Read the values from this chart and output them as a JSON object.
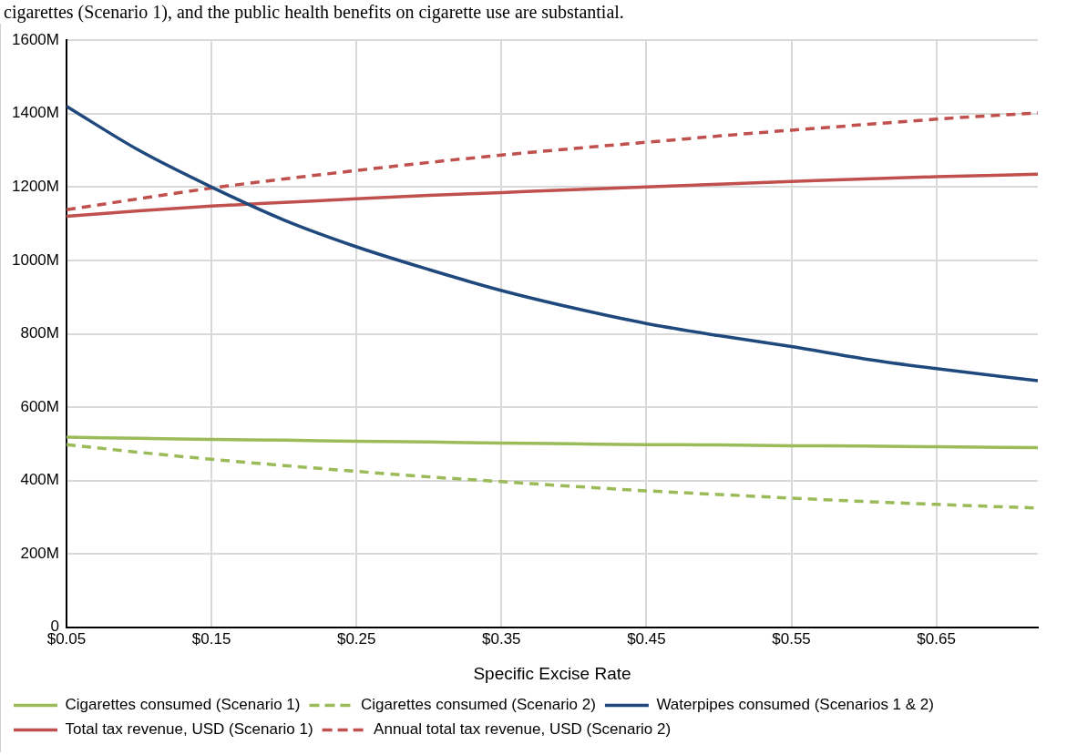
{
  "chart_data": {
    "type": "line",
    "xlabel": "Specific Excise Rate",
    "annotations": [
      "cigarettes (Scenario 1), and the public health benefits on cigarette use are substantial."
    ],
    "x": [
      0.05,
      0.1,
      0.15,
      0.2,
      0.25,
      0.3,
      0.35,
      0.4,
      0.45,
      0.5,
      0.55,
      0.6,
      0.65,
      0.72
    ],
    "xlim": [
      0.05,
      0.72
    ],
    "xticks": [
      {
        "value": 0.05,
        "label": "$0.05"
      },
      {
        "value": 0.15,
        "label": "$0.15"
      },
      {
        "value": 0.25,
        "label": "$0.25"
      },
      {
        "value": 0.35,
        "label": "$0.35"
      },
      {
        "value": 0.45,
        "label": "$0.45"
      },
      {
        "value": 0.55,
        "label": "$0.55"
      },
      {
        "value": 0.65,
        "label": "$0.65"
      }
    ],
    "ylim": [
      0,
      1600
    ],
    "yticks": [
      0,
      {
        "value": 200,
        "label": "200M"
      },
      {
        "value": 400,
        "label": "400M"
      },
      {
        "value": 600,
        "label": "600M"
      },
      {
        "value": 800,
        "label": "800M"
      },
      {
        "value": 1000,
        "label": "1000M"
      },
      {
        "value": 1200,
        "label": "1200M"
      },
      {
        "value": 1400,
        "label": "1400M"
      },
      {
        "value": 1600,
        "label": "1600M"
      }
    ],
    "grid": true,
    "legend": "bottom",
    "marker": "none",
    "series": [
      {
        "name": "Cigarettes consumed (Scenario 1)",
        "color": "#9bbb59",
        "line_style": "solid",
        "values": [
          518,
          515,
          512,
          510,
          507,
          505,
          502,
          500,
          498,
          497,
          495,
          494,
          492,
          490
        ]
      },
      {
        "name": "Cigarettes consumed (Scenario 2)",
        "color": "#9bbb59",
        "line_style": "dashed",
        "values": [
          498,
          477,
          458,
          441,
          425,
          410,
          397,
          384,
          372,
          362,
          352,
          343,
          335,
          325
        ]
      },
      {
        "name": "Waterpipes consumed (Scenarios 1 & 2)",
        "color": "#1f497d",
        "line_style": "solid",
        "values": [
          1420,
          1300,
          1200,
          1110,
          1037,
          975,
          918,
          870,
          828,
          795,
          765,
          732,
          705,
          672
        ]
      },
      {
        "name": "Total tax revenue, USD (Scenario 1)",
        "color": "#c0504d",
        "line_style": "solid",
        "values": [
          1120,
          1135,
          1148,
          1158,
          1168,
          1177,
          1185,
          1193,
          1200,
          1208,
          1215,
          1222,
          1228,
          1235
        ]
      },
      {
        "name": "Annual total tax revenue, USD (Scenario 2)",
        "color": "#c0504d",
        "line_style": "dashed",
        "values": [
          1138,
          1168,
          1197,
          1222,
          1245,
          1267,
          1287,
          1305,
          1322,
          1339,
          1355,
          1370,
          1385,
          1402
        ]
      }
    ]
  }
}
